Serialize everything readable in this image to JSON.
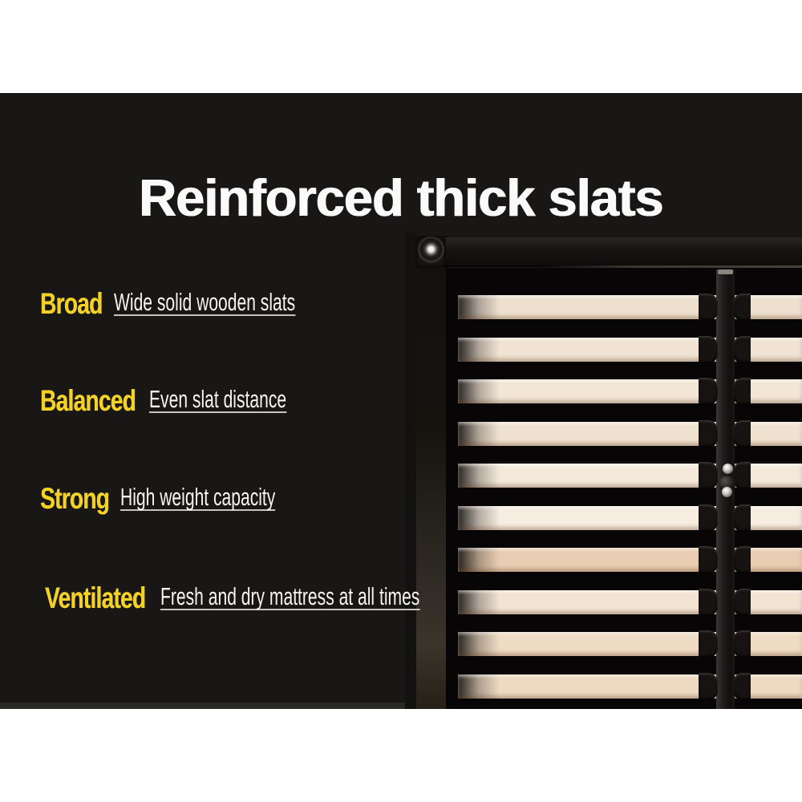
{
  "title": {
    "text": "Reinforced thick slats",
    "color": "#fafafa"
  },
  "features": [
    {
      "label": "Broad",
      "description": "Wide solid wooden slats"
    },
    {
      "label": "Balanced",
      "description": "Even slat distance"
    },
    {
      "label": "Strong",
      "description": "High weight capacity"
    },
    {
      "label": "Ventilated",
      "description": "Fresh and dry mattress at all times"
    }
  ],
  "style": {
    "panel_background": "#191616",
    "page_background": "#ffffff",
    "accent_yellow": "#f3d126",
    "description_color": "#f5f4f3",
    "underline_color": "#c6c4c2"
  },
  "photo": {
    "subject": "black metal bed base corner with reinforced wooden slats",
    "frame_color": "#141110",
    "center_rail_color": "#1b1918",
    "slat_colors": [
      "#eee0cf",
      "#f0e3d3",
      "#f2e6d6",
      "#f0e2d0",
      "#f4e9da",
      "#f6ecdf",
      "#e9cdb2",
      "#f2e3d3",
      "#efdcc4",
      "#eedac2"
    ]
  }
}
